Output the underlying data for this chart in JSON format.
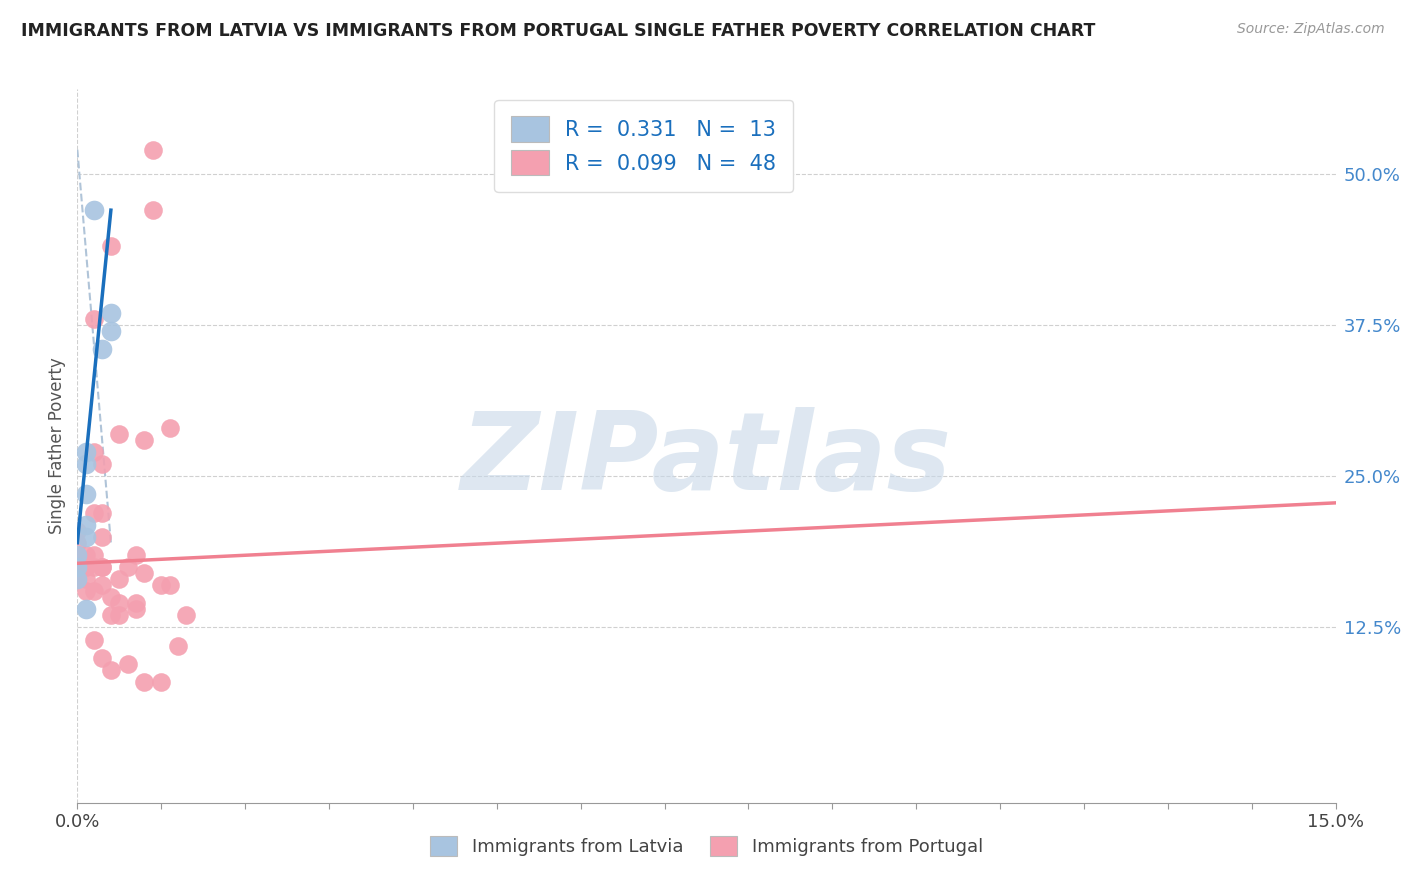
{
  "title": "IMMIGRANTS FROM LATVIA VS IMMIGRANTS FROM PORTUGAL SINGLE FATHER POVERTY CORRELATION CHART",
  "source": "Source: ZipAtlas.com",
  "ylabel": "Single Father Poverty",
  "xlim": [
    0.0,
    0.15
  ],
  "ylim": [
    -0.02,
    0.57
  ],
  "ytick_labels_right": [
    "12.5%",
    "25.0%",
    "37.5%",
    "50.0%"
  ],
  "ytick_vals_right": [
    0.125,
    0.25,
    0.375,
    0.5
  ],
  "legend_latvia_R": "0.331",
  "legend_latvia_N": "13",
  "legend_portugal_R": "0.099",
  "legend_portugal_N": "48",
  "latvia_color": "#a8c4e0",
  "portugal_color": "#f4a0b0",
  "latvia_line_color": "#1a6fbd",
  "portugal_line_color": "#f08090",
  "dashed_line_color": "#b0c4d8",
  "watermark_text": "ZIPatlas",
  "watermark_color": "#c8d8e8",
  "latvia_scatter": [
    [
      0.002,
      0.47
    ],
    [
      0.004,
      0.385
    ],
    [
      0.004,
      0.37
    ],
    [
      0.003,
      0.355
    ],
    [
      0.001,
      0.27
    ],
    [
      0.001,
      0.26
    ],
    [
      0.001,
      0.235
    ],
    [
      0.001,
      0.21
    ],
    [
      0.001,
      0.2
    ],
    [
      0.0,
      0.185
    ],
    [
      0.0,
      0.175
    ],
    [
      0.0,
      0.165
    ],
    [
      0.001,
      0.14
    ]
  ],
  "portugal_scatter": [
    [
      0.0,
      0.185
    ],
    [
      0.0,
      0.18
    ],
    [
      0.0,
      0.175
    ],
    [
      0.0,
      0.165
    ],
    [
      0.0,
      0.195
    ],
    [
      0.0,
      0.205
    ],
    [
      0.001,
      0.175
    ],
    [
      0.001,
      0.185
    ],
    [
      0.001,
      0.165
    ],
    [
      0.001,
      0.155
    ],
    [
      0.002,
      0.38
    ],
    [
      0.002,
      0.27
    ],
    [
      0.002,
      0.22
    ],
    [
      0.002,
      0.185
    ],
    [
      0.002,
      0.175
    ],
    [
      0.002,
      0.155
    ],
    [
      0.002,
      0.115
    ],
    [
      0.003,
      0.26
    ],
    [
      0.003,
      0.22
    ],
    [
      0.003,
      0.2
    ],
    [
      0.003,
      0.175
    ],
    [
      0.003,
      0.175
    ],
    [
      0.003,
      0.16
    ],
    [
      0.003,
      0.1
    ],
    [
      0.004,
      0.44
    ],
    [
      0.004,
      0.15
    ],
    [
      0.004,
      0.135
    ],
    [
      0.004,
      0.09
    ],
    [
      0.005,
      0.285
    ],
    [
      0.005,
      0.145
    ],
    [
      0.005,
      0.135
    ],
    [
      0.006,
      0.175
    ],
    [
      0.007,
      0.185
    ],
    [
      0.007,
      0.145
    ],
    [
      0.007,
      0.14
    ],
    [
      0.008,
      0.28
    ],
    [
      0.008,
      0.17
    ],
    [
      0.009,
      0.52
    ],
    [
      0.009,
      0.47
    ],
    [
      0.01,
      0.16
    ],
    [
      0.011,
      0.29
    ],
    [
      0.011,
      0.16
    ],
    [
      0.012,
      0.11
    ],
    [
      0.013,
      0.135
    ],
    [
      0.005,
      0.165
    ],
    [
      0.006,
      0.095
    ],
    [
      0.008,
      0.08
    ],
    [
      0.01,
      0.08
    ]
  ],
  "latvia_trend_x": [
    0.0,
    0.004
  ],
  "latvia_trend_y": [
    0.195,
    0.47
  ],
  "portugal_trend_x": [
    0.0,
    0.15
  ],
  "portugal_trend_y": [
    0.178,
    0.228
  ],
  "dashed_trend_x": [
    0.0,
    0.004
  ],
  "dashed_trend_y": [
    0.52,
    0.195
  ]
}
